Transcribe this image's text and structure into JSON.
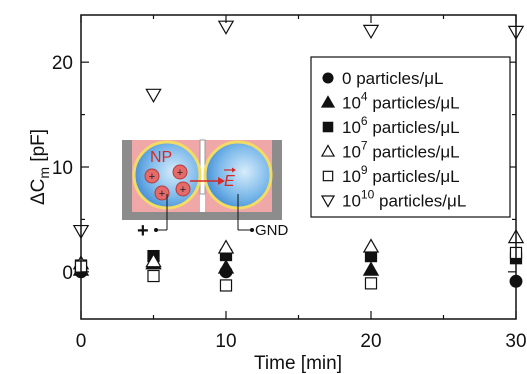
{
  "chart_data": {
    "type": "scatter",
    "xlabel": "Time [min]",
    "ylabel": {
      "prefix": "ΔC",
      "subscript": "m",
      "suffix": " [pF]"
    },
    "xlim": [
      0,
      30
    ],
    "ylim": [
      -4.5,
      24.5
    ],
    "xticks": [
      0,
      10,
      20,
      30
    ],
    "yticks": [
      0,
      10,
      20
    ],
    "grid": false,
    "legend_position": "top-right",
    "series": [
      {
        "name": "0 particles/μL",
        "base": "0",
        "exp": "",
        "unit": " particles/μL",
        "marker": "circle",
        "fill": "#111111",
        "points": [
          {
            "x": 0,
            "y": 0.0
          },
          {
            "x": 10,
            "y": 0.0
          },
          {
            "x": 30,
            "y": -0.9
          }
        ]
      },
      {
        "name": "10^4 particles/μL",
        "base": "10",
        "exp": "4",
        "unit": " particles/μL",
        "marker": "triangle-up",
        "fill": "#111111",
        "points": [
          {
            "x": 0,
            "y": 0.2
          },
          {
            "x": 5,
            "y": 0.8
          },
          {
            "x": 10,
            "y": 0.4
          },
          {
            "x": 20,
            "y": 0.2
          }
        ]
      },
      {
        "name": "10^6 particles/μL",
        "base": "10",
        "exp": "6",
        "unit": " particles/μL",
        "marker": "square",
        "fill": "#111111",
        "points": [
          {
            "x": 0,
            "y": 0.6
          },
          {
            "x": 5,
            "y": 1.5
          },
          {
            "x": 10,
            "y": 1.6
          },
          {
            "x": 20,
            "y": 1.5
          },
          {
            "x": 30,
            "y": 1.3
          }
        ]
      },
      {
        "name": "10^7 particles/μL",
        "base": "10",
        "exp": "7",
        "unit": " particles/μL",
        "marker": "triangle-up",
        "fill": "none",
        "points": [
          {
            "x": 0,
            "y": 0.8
          },
          {
            "x": 5,
            "y": 1.0
          },
          {
            "x": 10,
            "y": 2.3
          },
          {
            "x": 20,
            "y": 2.4
          },
          {
            "x": 30,
            "y": 3.3
          }
        ]
      },
      {
        "name": "10^9 particles/μL",
        "base": "10",
        "exp": "9",
        "unit": " particles/μL",
        "marker": "square",
        "fill": "none",
        "points": [
          {
            "x": 0,
            "y": 0.5
          },
          {
            "x": 5,
            "y": -0.4
          },
          {
            "x": 10,
            "y": -1.3
          },
          {
            "x": 20,
            "y": -1.1
          },
          {
            "x": 30,
            "y": 1.8
          }
        ]
      },
      {
        "name": "10^10 particles/μL",
        "base": "10",
        "exp": "10",
        "unit": " particles/μL",
        "marker": "triangle-down",
        "fill": "none",
        "points": [
          {
            "x": 0,
            "y": 3.9
          },
          {
            "x": 5,
            "y": 16.9
          },
          {
            "x": 10,
            "y": 23.4
          },
          {
            "x": 20,
            "y": 23.0
          },
          {
            "x": 30,
            "y": 22.9
          }
        ]
      }
    ],
    "inset": {
      "particle_label": "NP",
      "field_label": "E",
      "plus_sign": "+",
      "ground_label": "GND"
    }
  }
}
